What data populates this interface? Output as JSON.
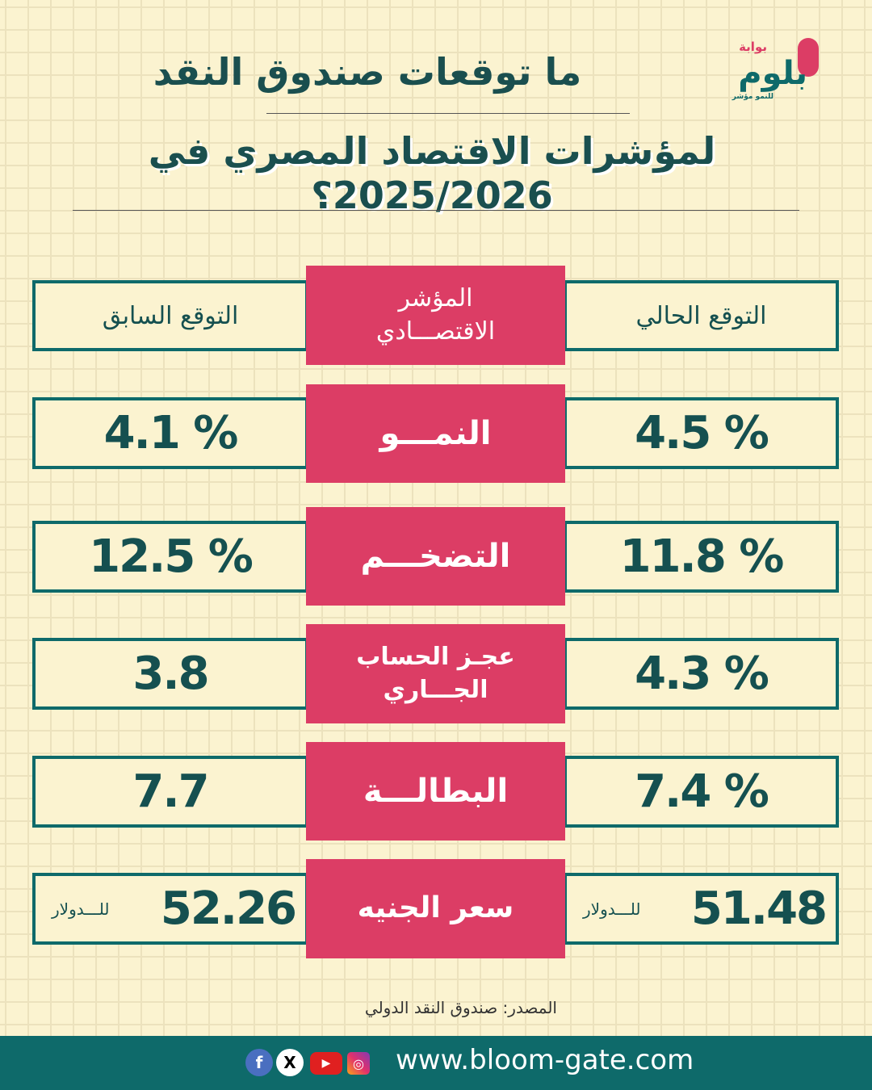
{
  "logo": {
    "top": "بوابة",
    "main": "بلوم",
    "sub": "للنمو مؤشر"
  },
  "title": {
    "line1": "ما توقعات صندوق النقد",
    "line2": "لمؤشرات الاقتصاد المصري في 2025/2026؟"
  },
  "header": {
    "current": "التوقع الحالي",
    "indicator": "المؤشر الاقتصـــادي",
    "previous": "التوقع السابق"
  },
  "rows": [
    {
      "indicator": "النمـــو",
      "current": "4.5 %",
      "previous": "4.1 %"
    },
    {
      "indicator": "التضخـــم",
      "current": "11.8 %",
      "previous": "12.5 %"
    },
    {
      "indicator": "عجـز الحساب الجـــاري",
      "current": "4.3 %",
      "previous": "3.8"
    },
    {
      "indicator": "البطالـــة",
      "current": "7.4 %",
      "previous": "7.7"
    },
    {
      "indicator": "سعر الجنيه",
      "current": "51.48",
      "previous": "52.26",
      "unit": "للـــدولار"
    }
  ],
  "source": "المصدر: صندوق النقد الدولي",
  "footer": {
    "url": "www.bloom-gate.com",
    "social": [
      "facebook-icon",
      "x-icon",
      "youtube-icon",
      "instagram-icon"
    ]
  },
  "colors": {
    "teal": "#0e6a6a",
    "pink": "#dc3d65",
    "background": "#fbf3d0"
  }
}
